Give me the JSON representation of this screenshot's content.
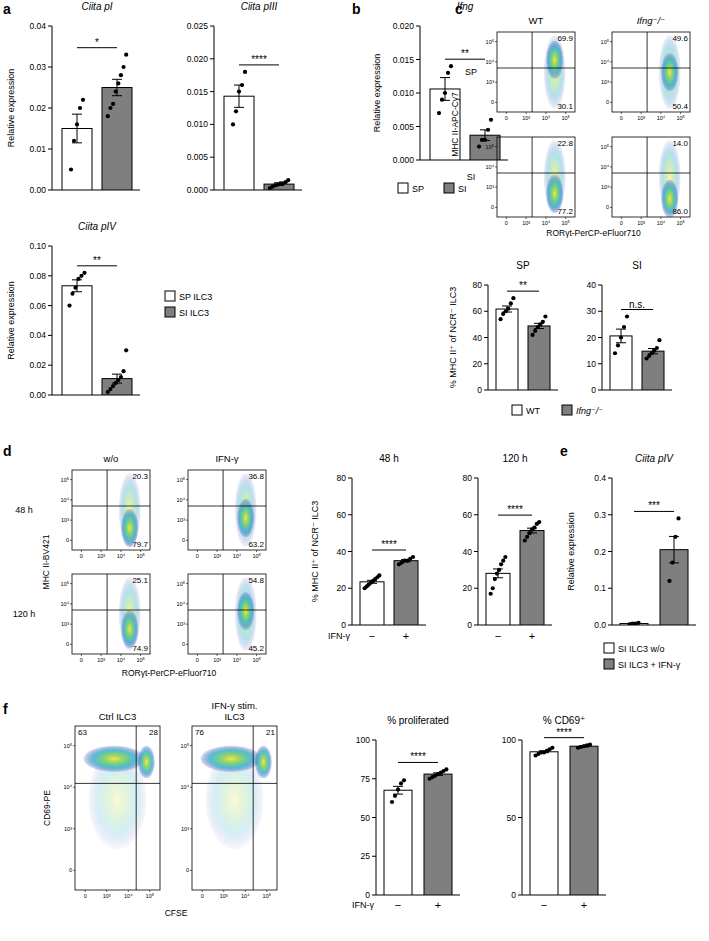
{
  "panel_labels": [
    "a",
    "b",
    "c",
    "d",
    "e",
    "f"
  ],
  "chart_data": [
    {
      "type": "bar",
      "title": "Ciita pI",
      "y_label": "Relative expression",
      "categories": [
        "SP ILC3",
        "SI ILC3"
      ],
      "values": [
        0.015,
        0.025
      ],
      "errors": [
        0.0035,
        0.002
      ],
      "points": [
        [
          0.005,
          0.012,
          0.016,
          0.02,
          0.022
        ],
        [
          0.018,
          0.02,
          0.021,
          0.024,
          0.026,
          0.028,
          0.03,
          0.033
        ]
      ],
      "colors": [
        "#ffffff",
        "#7f7f7f"
      ],
      "ylim": [
        0,
        0.04
      ],
      "yticks": [
        {
          "value": 0,
          "label": "0.00"
        },
        0.01,
        0.02,
        0.03,
        0.04
      ],
      "annotation": "*",
      "tick_labels": "y"
    },
    {
      "type": "bar",
      "title": "Ciita pIII",
      "categories": [
        "SP ILC3",
        "SI ILC3"
      ],
      "values": [
        0.0143,
        0.0009
      ],
      "errors": [
        0.0017,
        0.0002
      ],
      "points": [
        [
          0.01,
          0.012,
          0.015,
          0.016,
          0.018
        ],
        [
          0.0003,
          0.0005,
          0.0007,
          0.0008,
          0.001,
          0.001,
          0.0012,
          0.0015
        ]
      ],
      "colors": [
        "#ffffff",
        "#7f7f7f"
      ],
      "ylim": [
        0,
        0.025
      ],
      "yticks": [
        {
          "value": 0,
          "label": "0.000"
        },
        0.005,
        {
          "value": 0.01,
          "label": "0.010"
        },
        0.015,
        {
          "value": 0.02,
          "label": "0.020"
        },
        0.025
      ],
      "annotation": "****",
      "tick_labels": "y"
    },
    {
      "type": "bar",
      "title": "Ciita pIV",
      "y_label": "Relative expression",
      "categories": [
        "SP ILC3",
        "SI ILC3"
      ],
      "values": [
        0.0733,
        0.011
      ],
      "errors": [
        0.004,
        0.003
      ],
      "points": [
        [
          0.06,
          0.068,
          0.072,
          0.078,
          0.08,
          0.082
        ],
        [
          0.002,
          0.004,
          0.006,
          0.008,
          0.01,
          0.012,
          0.016,
          0.03
        ]
      ],
      "colors": [
        "#ffffff",
        "#7f7f7f"
      ],
      "ylim": [
        0,
        0.1
      ],
      "yticks": [
        {
          "value": 0,
          "label": "0.00"
        },
        0.02,
        0.04,
        0.06,
        0.08,
        {
          "value": 0.1,
          "label": "0.10"
        }
      ],
      "annotation": "**",
      "tick_labels": "y",
      "legend": "right"
    },
    {
      "type": "bar",
      "title": "Ifng",
      "y_label": "Relative expression",
      "categories": [
        "SP",
        "SI"
      ],
      "values": [
        0.0106,
        0.0037
      ],
      "errors": [
        0.0017,
        0.0008
      ],
      "points": [
        [
          0.007,
          0.009,
          0.01,
          0.013,
          0.014
        ],
        [
          0.002,
          0.003,
          0.003,
          0.0045,
          0.006
        ]
      ],
      "colors": [
        "#ffffff",
        "#7f7f7f"
      ],
      "ylim": [
        0,
        0.02
      ],
      "yticks": [
        {
          "value": 0,
          "label": "0.000"
        },
        0.005,
        {
          "value": 0.01,
          "label": "0.010"
        },
        0.015,
        {
          "value": 0.02,
          "label": "0.020"
        }
      ],
      "annotation": "**",
      "tick_labels": "y",
      "legend": "bottom"
    },
    {
      "type": "bar",
      "title": "SP",
      "y_label": "% MHC II⁺ of NCR⁻ ILC3",
      "categories": [
        "WT",
        "Ifng⁻/⁻"
      ],
      "values": [
        61.7,
        48.8
      ],
      "errors": [
        2.3,
        2.0
      ],
      "points": [
        [
          54,
          58,
          60,
          62,
          66,
          70
        ],
        [
          42,
          45,
          48,
          50,
          52,
          56
        ]
      ],
      "colors": [
        "#ffffff",
        "#7f7f7f"
      ],
      "ylim": [
        0,
        80
      ],
      "yticks": [
        0,
        20,
        40,
        60,
        80
      ],
      "annotation": "**",
      "tick_labels": "y",
      "legend": "bottom"
    },
    {
      "type": "bar",
      "title": "SI",
      "categories": [
        "WT",
        "Ifng⁻/⁻"
      ],
      "values": [
        20.6,
        14.8
      ],
      "errors": [
        2.6,
        1.0
      ],
      "points": [
        [
          14,
          17,
          20,
          24,
          28
        ],
        [
          12,
          13,
          14,
          15,
          16,
          19
        ]
      ],
      "colors": [
        "#ffffff",
        "#7f7f7f"
      ],
      "ylim": [
        0,
        40
      ],
      "yticks": [
        0,
        10,
        20,
        30,
        40
      ],
      "annotation": "n.s.",
      "tick_labels": "y"
    },
    {
      "type": "bar",
      "title": "48 h",
      "y_label": "% MHC II⁺ of NCR⁻ ILC3",
      "x_label": "IFN-γ",
      "categories": [
        "−",
        "+"
      ],
      "values": [
        23.5,
        35.0
      ],
      "errors": [
        0.8,
        0.6
      ],
      "points": [
        [
          20,
          21,
          22,
          23,
          24,
          25,
          26,
          27
        ],
        [
          33,
          34,
          35,
          35,
          36,
          37
        ]
      ],
      "colors": [
        "#ffffff",
        "#7f7f7f"
      ],
      "ylim": [
        0,
        80
      ],
      "yticks": [
        0,
        20,
        40,
        60,
        80
      ],
      "annotation": "****"
    },
    {
      "type": "bar",
      "title": "120 h",
      "categories": [
        "−",
        "+"
      ],
      "values": [
        28.1,
        51.4
      ],
      "errors": [
        2.4,
        1.3
      ],
      "points": [
        [
          17,
          20,
          25,
          28,
          30,
          33,
          35,
          37
        ],
        [
          46,
          48,
          50,
          52,
          53,
          55,
          56
        ]
      ],
      "colors": [
        "#ffffff",
        "#7f7f7f"
      ],
      "ylim": [
        0,
        80
      ],
      "yticks": [
        0,
        20,
        40,
        60,
        80
      ],
      "annotation": "****"
    },
    {
      "type": "bar",
      "title": "Ciita pIV",
      "y_label": "Relative expression",
      "categories": [
        "SI ILC3 w/o",
        "SI ILC3 + IFN-γ"
      ],
      "values": [
        0.004,
        0.205
      ],
      "errors": [
        0.001,
        0.036
      ],
      "points": [
        [
          0.002,
          0.004,
          0.004,
          0.006
        ],
        [
          0.12,
          0.17,
          0.24,
          0.29
        ]
      ],
      "colors": [
        "#ffffff",
        "#7f7f7f"
      ],
      "ylim": [
        0,
        0.4
      ],
      "yticks": [
        {
          "value": 0,
          "label": "0.0"
        },
        0.1,
        0.2,
        0.3,
        0.4
      ],
      "annotation": "***",
      "tick_labels": "y",
      "legend": "bottom"
    },
    {
      "type": "bar",
      "title": "% proliferated",
      "x_label": "IFN-γ",
      "categories": [
        "−",
        "+"
      ],
      "values": [
        67.6,
        78.0
      ],
      "errors": [
        2.5,
        0.8
      ],
      "points": [
        [
          60,
          64,
          68,
          72,
          74
        ],
        [
          75,
          76,
          77,
          78,
          79,
          80,
          81
        ]
      ],
      "colors": [
        "#ffffff",
        "#7f7f7f"
      ],
      "ylim": [
        0,
        100
      ],
      "yticks": [
        0,
        25,
        50,
        75,
        100
      ],
      "annotation": "****"
    },
    {
      "type": "bar",
      "title": "% CD69⁺",
      "categories": [
        "−",
        "+"
      ],
      "values": [
        92.4,
        96.0
      ],
      "errors": [
        0.6,
        0.4
      ],
      "points": [
        [
          90,
          91,
          92,
          92,
          93,
          94,
          95
        ],
        [
          95,
          95.5,
          96,
          96.5,
          97
        ]
      ],
      "colors": [
        "#ffffff",
        "#7f7f7f"
      ],
      "ylim": [
        0,
        100
      ],
      "yticks": [
        0,
        50,
        100
      ],
      "annotation": "****"
    }
  ],
  "flow_plots": [
    {
      "columns": [
        "WT",
        "Ifng⁻/⁻"
      ],
      "rows": [
        "SP",
        "SI"
      ],
      "x_label": "RORγt-PerCP-eFluor710",
      "y_label": "MHC II-APC-Cy7",
      "ticks": [
        "0",
        "10³",
        "10⁴",
        "10⁵"
      ],
      "cells": [
        [
          {
            "upper_right": "69.9",
            "lower_right": "30.1"
          },
          {
            "upper_right": "49.6",
            "lower_right": "50.4"
          }
        ],
        [
          {
            "upper_right": "22.8",
            "lower_right": "77.2"
          },
          {
            "upper_right": "14.0",
            "lower_right": "86.0"
          }
        ]
      ]
    },
    {
      "columns": [
        "w/o",
        "IFN-γ"
      ],
      "rows": [
        "48 h",
        "120 h"
      ],
      "x_label": "RORγt-PerCP-eFluor710",
      "y_label": "MHC II-BV421",
      "ticks": [
        "0",
        "10³",
        "10⁴",
        "10⁵"
      ],
      "cells": [
        [
          {
            "upper_right": "20.3",
            "lower_right": "79.7"
          },
          {
            "upper_right": "36.8",
            "lower_right": "63.2"
          }
        ],
        [
          {
            "upper_right": "25.1",
            "lower_right": "74.9"
          },
          {
            "upper_right": "54.8",
            "lower_right": "45.2"
          }
        ]
      ]
    },
    {
      "columns": [
        "Ctrl ILC3",
        "IFN-γ stim.\nILC3"
      ],
      "rows": [],
      "x_label": "CFSE",
      "y_label": "CD69-PE",
      "ticks": [
        "0",
        "10³",
        "10⁴",
        "10⁵"
      ],
      "cells": [
        [
          {
            "upper_left": "63",
            "upper_right": "28"
          },
          {
            "upper_left": "76",
            "upper_right": "21"
          }
        ]
      ]
    }
  ]
}
